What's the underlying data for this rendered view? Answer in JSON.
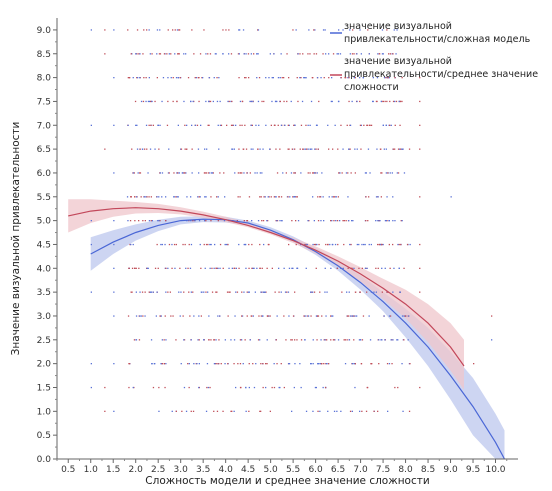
{
  "chart_data": {
    "type": "scatter",
    "xlabel": "Сложность модели и среднее значение сложности",
    "ylabel": "Значение визуальной привлекательности",
    "xlim": [
      0.25,
      10.5
    ],
    "ylim": [
      0.0,
      9.25
    ],
    "x_ticks": [
      "0.5",
      "1.0",
      "1.5",
      "2.0",
      "2.5",
      "3.0",
      "3.5",
      "4.0",
      "4.5",
      "5.0",
      "5.5",
      "6.0",
      "6.5",
      "7.0",
      "7.5",
      "8.0",
      "8.5",
      "9.0",
      "9.5",
      "10.0"
    ],
    "y_ticks": [
      "0.0",
      "0.5",
      "1.0",
      "1.5",
      "2.0",
      "2.5",
      "3.0",
      "3.5",
      "4.0",
      "4.5",
      "5.0",
      "5.5",
      "6.0",
      "6.5",
      "7.0",
      "7.5",
      "8.0",
      "8.5",
      "9.0"
    ],
    "grid": false,
    "legend_position": "top-right",
    "scatter": {
      "y_levels": [
        1.0,
        1.5,
        2.0,
        2.5,
        3.0,
        3.5,
        4.0,
        4.5,
        5.0,
        5.5,
        6.0,
        6.5,
        7.0,
        7.5,
        8.0,
        8.5,
        9.0
      ],
      "x_range_approx": [
        1.0,
        9.9
      ],
      "colors": [
        "#5a72d6",
        "#c0505a"
      ]
    },
    "series": [
      {
        "name": "значение визуальной привлекательности/сложная модель",
        "color": "#4a67d6",
        "band_color": "#bcc7ee",
        "x": [
          1.0,
          1.5,
          2.0,
          2.5,
          3.0,
          3.5,
          4.0,
          4.5,
          5.0,
          5.5,
          6.0,
          6.5,
          7.0,
          7.5,
          8.0,
          8.5,
          9.0,
          9.5,
          10.0,
          10.2
        ],
        "y": [
          4.3,
          4.55,
          4.75,
          4.9,
          5.0,
          5.03,
          5.02,
          4.95,
          4.8,
          4.6,
          4.35,
          4.05,
          3.7,
          3.3,
          2.85,
          2.35,
          1.75,
          1.1,
          0.35,
          0.0
        ],
        "lower": [
          3.95,
          4.3,
          4.58,
          4.78,
          4.92,
          4.97,
          4.96,
          4.9,
          4.75,
          4.55,
          4.28,
          3.95,
          3.55,
          3.1,
          2.55,
          1.95,
          1.25,
          0.5,
          0.0,
          0.0
        ],
        "upper": [
          4.65,
          4.8,
          4.92,
          5.02,
          5.08,
          5.09,
          5.08,
          5.0,
          4.86,
          4.67,
          4.43,
          4.15,
          3.85,
          3.5,
          3.15,
          2.75,
          2.25,
          1.7,
          0.95,
          0.6
        ]
      },
      {
        "name": "значение визуальной привлекательности/среднее значение сложности",
        "color": "#c2475a",
        "band_color": "#efc5cb",
        "x": [
          0.5,
          1.0,
          1.5,
          2.0,
          2.5,
          3.0,
          3.5,
          4.0,
          4.5,
          5.0,
          5.5,
          6.0,
          6.5,
          7.0,
          7.5,
          8.0,
          8.5,
          9.0,
          9.3
        ],
        "y": [
          5.1,
          5.2,
          5.25,
          5.27,
          5.25,
          5.2,
          5.12,
          5.02,
          4.9,
          4.75,
          4.58,
          4.38,
          4.15,
          3.88,
          3.58,
          3.25,
          2.85,
          2.35,
          1.95
        ],
        "lower": [
          4.75,
          4.95,
          5.08,
          5.15,
          5.16,
          5.13,
          5.06,
          4.97,
          4.86,
          4.71,
          4.53,
          4.31,
          4.05,
          3.72,
          3.35,
          2.95,
          2.45,
          1.85,
          1.45
        ],
        "upper": [
          5.45,
          5.45,
          5.42,
          5.39,
          5.35,
          5.28,
          5.19,
          5.08,
          4.95,
          4.8,
          4.64,
          4.46,
          4.25,
          4.02,
          3.78,
          3.55,
          3.25,
          2.85,
          2.5
        ]
      }
    ]
  }
}
